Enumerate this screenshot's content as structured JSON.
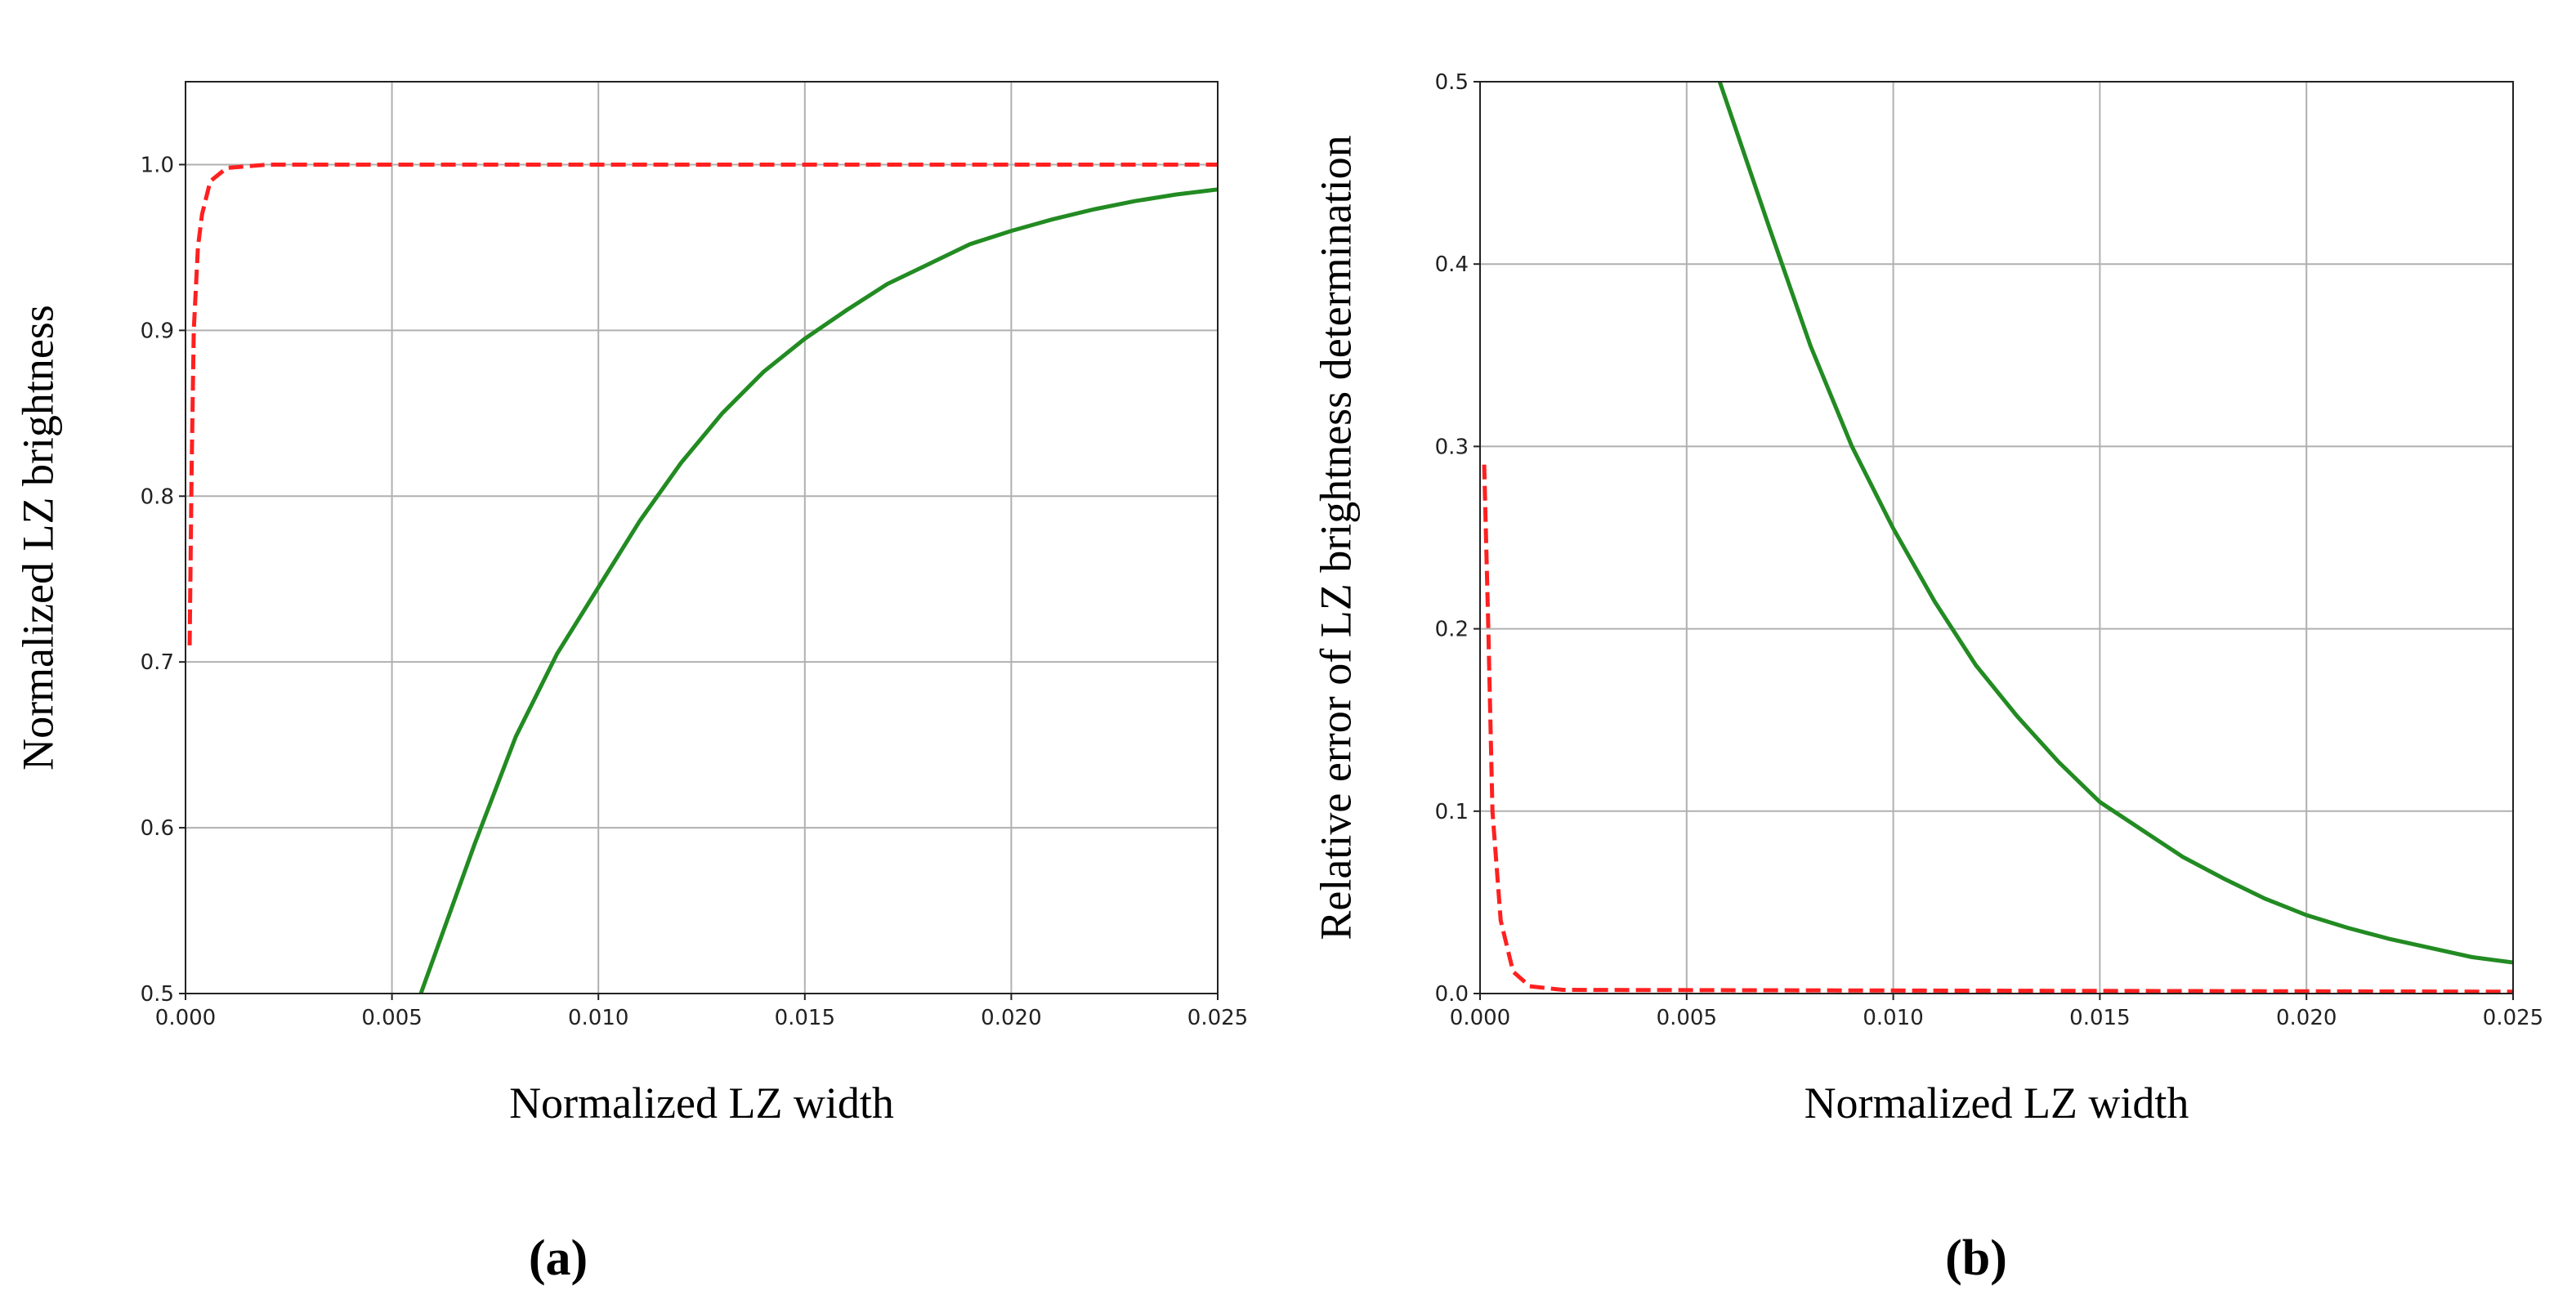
{
  "chart_data": [
    {
      "type": "line",
      "caption": "(a)",
      "xlabel": "Normalized LZ width",
      "ylabel": "Normalized LZ brightness",
      "xlim": [
        0,
        0.025
      ],
      "ylim": [
        0.5,
        1.05
      ],
      "grid": true,
      "xticks": [
        {
          "value": 0,
          "label": "0.000"
        },
        0.005,
        {
          "value": 0.01,
          "label": "0.010"
        },
        0.015,
        {
          "value": 0.02,
          "label": "0.020"
        },
        0.025
      ],
      "yticks": [
        0.5,
        0.6,
        0.7,
        0.8,
        0.9,
        {
          "value": 1,
          "label": "1.0"
        }
      ],
      "series": [
        {
          "color": "#228b22",
          "style": "solid",
          "x": [
            0.0057,
            0.007,
            0.008,
            0.009,
            0.01,
            0.011,
            0.012,
            0.013,
            0.014,
            0.015,
            0.016,
            0.017,
            0.018,
            0.019,
            0.02,
            0.021,
            0.022,
            0.023,
            0.024,
            0.025
          ],
          "values": [
            0.5,
            0.59,
            0.655,
            0.705,
            0.745,
            0.785,
            0.82,
            0.85,
            0.875,
            0.895,
            0.912,
            0.928,
            0.94,
            0.952,
            0.96,
            0.967,
            0.973,
            0.978,
            0.982,
            0.985
          ]
        },
        {
          "color": "#ff2020",
          "style": "dashed",
          "x": [
            0.0001,
            0.00015,
            0.0002,
            0.0003,
            0.0004,
            0.0006,
            0.001,
            0.002,
            0.025
          ],
          "values": [
            0.71,
            0.82,
            0.9,
            0.95,
            0.97,
            0.99,
            0.998,
            1.0,
            1.0
          ]
        }
      ]
    },
    {
      "type": "line",
      "caption": "(b)",
      "xlabel": "Normalized LZ width",
      "ylabel": "Relative error of LZ brightness determination",
      "xlim": [
        0,
        0.025
      ],
      "ylim": [
        0,
        0.5
      ],
      "grid": true,
      "xticks": [
        {
          "value": 0,
          "label": "0.000"
        },
        0.005,
        {
          "value": 0.01,
          "label": "0.010"
        },
        0.015,
        {
          "value": 0.02,
          "label": "0.020"
        },
        0.025
      ],
      "yticks": [
        {
          "value": 0,
          "label": "0.0"
        },
        0.1,
        0.2,
        0.3,
        0.4,
        0.5
      ],
      "series": [
        {
          "color": "#228b22",
          "style": "solid",
          "x": [
            0.0058,
            0.007,
            0.008,
            0.009,
            0.01,
            0.011,
            0.012,
            0.013,
            0.014,
            0.015,
            0.016,
            0.017,
            0.018,
            0.019,
            0.02,
            0.021,
            0.022,
            0.023,
            0.024,
            0.025
          ],
          "values": [
            0.5,
            0.42,
            0.355,
            0.3,
            0.255,
            0.215,
            0.18,
            0.152,
            0.127,
            0.105,
            0.09,
            0.075,
            0.063,
            0.052,
            0.043,
            0.036,
            0.03,
            0.025,
            0.02,
            0.017
          ]
        },
        {
          "color": "#ff2020",
          "style": "dashed",
          "x": [
            0.0001,
            0.0002,
            0.0003,
            0.0005,
            0.0008,
            0.0012,
            0.002,
            0.025
          ],
          "values": [
            0.29,
            0.2,
            0.1,
            0.04,
            0.012,
            0.004,
            0.002,
            0.001
          ]
        }
      ]
    }
  ]
}
